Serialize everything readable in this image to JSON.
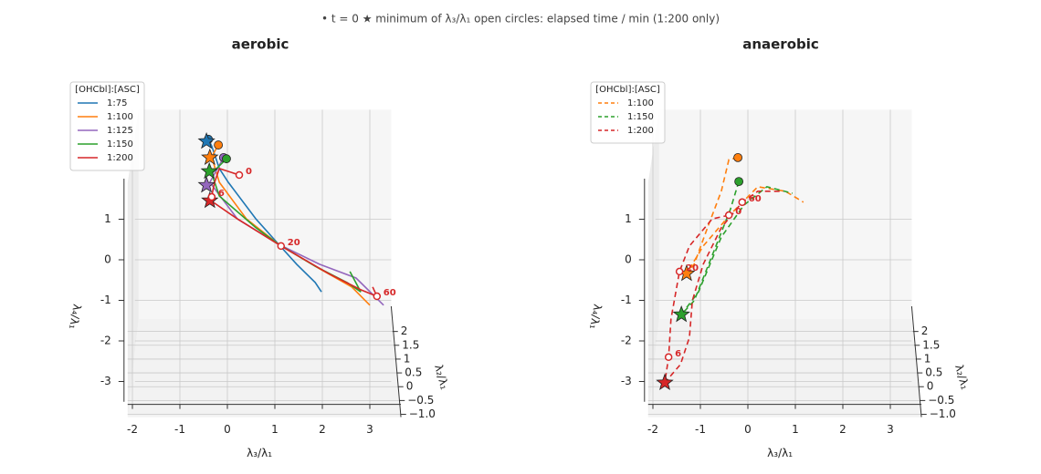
{
  "note": "• t = 0     ★ minimum of λ₃/λ₁     open circles: elapsed time / min (1:200 only)",
  "chart_data": [
    {
      "type": "line3d",
      "title": "aerobic",
      "xlabel": "λ₃/λ₁",
      "ylabel": "λ₂/λ₁",
      "zlabel": "λ₄/λ₁",
      "linestyle": "solid",
      "legend_title": "[OHCbl]:[ASC]",
      "legend": "upper left",
      "xlim": [
        -2.1,
        3.45
      ],
      "xticks": [
        -2,
        -1,
        0,
        1,
        2,
        3
      ],
      "ylim": [
        -1.1,
        2.45
      ],
      "yticks": [
        2.0,
        1.5,
        1.0,
        0.5,
        0.0,
        {
          "value": -0.5,
          "label": "−0.5"
        },
        {
          "value": -1.0,
          "label": "−1.0"
        }
      ],
      "zlim": [
        -3.5,
        3.7
      ],
      "zticks": [
        -3,
        -2,
        -1,
        0,
        1
      ],
      "series": [
        {
          "name": "1:75",
          "color": "#1f77b4",
          "x": [
            -0.4,
            -0.33,
            -0.17,
            0.02,
            0.6,
            1.08,
            1.46,
            1.85,
            1.98
          ],
          "z": [
            2.97,
            2.81,
            2.25,
            1.91,
            1.01,
            0.38,
            -0.11,
            -0.56,
            -0.79
          ],
          "start": [
            -0.4,
            2.97
          ],
          "minimum": [
            -0.44,
            2.92
          ]
        },
        {
          "name": "1:100",
          "color": "#ff7f0e",
          "x": [
            -0.19,
            -0.33,
            -0.17,
            0.4,
            1.08,
            1.94,
            2.62,
            3.0
          ],
          "z": [
            2.83,
            2.54,
            1.91,
            1.01,
            0.38,
            -0.22,
            -0.67,
            -1.12
          ],
          "start": [
            -0.19,
            2.83
          ],
          "minimum": [
            -0.37,
            2.52
          ]
        },
        {
          "name": "1:125",
          "color": "#9467bd",
          "x": [
            -0.08,
            -0.37,
            0.21,
            1.08,
            1.94,
            2.71,
            3.29
          ],
          "z": [
            2.52,
            1.91,
            1.01,
            0.38,
            -0.11,
            -0.45,
            -1.12
          ],
          "start": [
            -0.08,
            2.52
          ],
          "minimum": [
            -0.44,
            1.84
          ]
        },
        {
          "name": "1:150",
          "color": "#2ca02c",
          "x": [
            -0.02,
            -0.33,
            -0.17,
            0.6,
            1.08,
            1.85,
            2.52,
            2.81,
            2.58
          ],
          "z": [
            2.49,
            2.13,
            1.57,
            0.79,
            0.38,
            -0.16,
            -0.56,
            -0.79,
            -0.29
          ],
          "start": [
            -0.02,
            2.49
          ],
          "minimum": [
            -0.38,
            2.18
          ]
        },
        {
          "name": "1:200",
          "color": "#d62728",
          "x": [
            0.25,
            -0.17,
            -0.27,
            -0.35,
            0.21,
            1.13,
            2.13,
            2.81,
            3.15,
            3.06
          ],
          "z": [
            2.09,
            2.25,
            1.91,
            1.46,
            1.01,
            0.34,
            -0.34,
            -0.74,
            -0.9,
            -0.67
          ],
          "minimum": [
            -0.37,
            1.46
          ],
          "times": [
            {
              "label": "0",
              "x": 0.25,
              "z": 2.09
            },
            {
              "label": "6",
              "x": -0.33,
              "z": 1.55
            },
            {
              "label": "20",
              "x": 1.13,
              "z": 0.34
            },
            {
              "label": "60",
              "x": 3.15,
              "z": -0.9
            }
          ]
        }
      ]
    },
    {
      "type": "line3d",
      "title": "anaerobic",
      "xlabel": "λ₃/λ₁",
      "ylabel": "λ₂/λ₁",
      "zlabel": "λ₄/λ₁",
      "linestyle": "dashed",
      "legend_title": "[OHCbl]:[ASC]",
      "legend": "upper left",
      "xlim": [
        -2.1,
        3.45
      ],
      "xticks": [
        -2,
        -1,
        0,
        1,
        2,
        3
      ],
      "ylim": [
        -1.1,
        2.45
      ],
      "yticks": [
        2.0,
        1.5,
        1.0,
        0.5,
        0.0,
        {
          "value": -0.5,
          "label": "−0.5"
        },
        {
          "value": -1.0,
          "label": "−1.0"
        }
      ],
      "zlim": [
        -3.5,
        3.7
      ],
      "zticks": [
        -3,
        -2,
        -1,
        0,
        1
      ],
      "series": [
        {
          "name": "1:100",
          "color": "#ff7f0e",
          "x": [
            -0.21,
            -0.4,
            -0.56,
            -0.85,
            -1.13,
            -1.29,
            -0.94,
            -0.37,
            0.21,
            0.79,
            1.17
          ],
          "z": [
            2.52,
            2.47,
            1.69,
            0.79,
            -0.11,
            -0.34,
            0.34,
            1.12,
            1.8,
            1.69,
            1.42
          ],
          "start": [
            -0.21,
            2.52
          ],
          "minimum": [
            -1.29,
            -0.34
          ]
        },
        {
          "name": "1:150",
          "color": "#2ca02c",
          "x": [
            -0.19,
            -0.37,
            -0.75,
            -1.13,
            -1.4,
            -1.04,
            -0.56,
            -0.08,
            0.4,
            0.94
          ],
          "z": [
            1.93,
            1.24,
            0.11,
            -1.01,
            -1.35,
            -0.79,
            0.56,
            1.35,
            1.8,
            1.64
          ],
          "start": [
            -0.19,
            1.93
          ],
          "minimum": [
            -1.4,
            -1.35
          ]
        },
        {
          "name": "1:200",
          "color": "#d62728",
          "x": [
            -0.4,
            -0.75,
            -1.23,
            -1.44,
            -1.62,
            -1.67,
            -1.75,
            -1.42,
            -1.23,
            -1.17,
            -0.94,
            -0.56,
            -0.12,
            0.21,
            0.75
          ],
          "z": [
            1.1,
            1.01,
            0.34,
            -0.29,
            -1.46,
            -2.4,
            -3.03,
            -2.58,
            -1.91,
            -1.01,
            -0.11,
            0.79,
            1.42,
            1.69,
            1.69
          ],
          "minimum": [
            -1.75,
            -3.03
          ],
          "times": [
            {
              "label": "0",
              "x": -0.4,
              "z": 1.1
            },
            {
              "label": "6",
              "x": -1.67,
              "z": -2.4
            },
            {
              "label": "20",
              "x": -1.44,
              "z": -0.29
            },
            {
              "label": "60",
              "x": -0.12,
              "z": 1.42
            }
          ]
        }
      ]
    }
  ]
}
